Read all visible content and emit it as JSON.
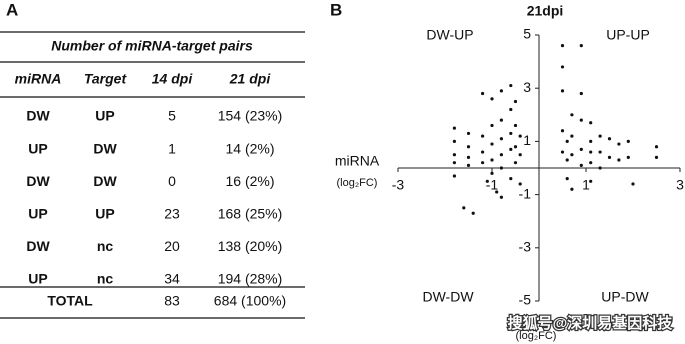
{
  "panel_a": {
    "label": "A",
    "table": {
      "title": "Number of miRNA-target pairs",
      "header": [
        "miRNA",
        "Target",
        "14 dpi",
        "21 dpi"
      ],
      "rows": [
        [
          "DW",
          "UP",
          "5",
          "154 (23%)"
        ],
        [
          "UP",
          "DW",
          "1",
          "14 (2%)"
        ],
        [
          "DW",
          "DW",
          "0",
          "16 (2%)"
        ],
        [
          "UP",
          "UP",
          "23",
          "168 (25%)"
        ],
        [
          "DW",
          "nc",
          "20",
          "138 (20%)"
        ],
        [
          "UP",
          "nc",
          "34",
          "194 (28%)"
        ]
      ],
      "total": [
        "TOTAL",
        "83",
        "684 (100%)"
      ]
    }
  },
  "chart_data": {
    "type": "scatter",
    "panel_label": "B",
    "title": "21dpi",
    "x_label": "miRNA",
    "x_label_unit": "(log₂FC)",
    "y_label_unit": "(log₂FC)",
    "quadrant_labels": {
      "top_left": "DW-UP",
      "top_right": "UP-UP",
      "bottom_left": "DW-DW",
      "bottom_right": "UP-DW"
    },
    "color": "#111111",
    "xlim": [
      -3,
      3
    ],
    "ylim": [
      -5,
      5
    ],
    "xticks": [
      -3,
      -1,
      1,
      3
    ],
    "yticks": [
      5,
      3,
      1,
      -1,
      -3,
      -5
    ],
    "x": [
      -1.8,
      -1.8,
      -1.8,
      -1.8,
      -1.8,
      -1.5,
      -1.5,
      -1.5,
      -1.5,
      -1.6,
      -1.4,
      -1.2,
      -1.2,
      -1.2,
      -1.2,
      -1.1,
      -1.0,
      -1.0,
      -1.0,
      -1.0,
      -1.0,
      -0.9,
      -0.8,
      -0.8,
      -0.8,
      -0.8,
      -0.8,
      -0.8,
      -0.6,
      -0.6,
      -0.6,
      -0.6,
      -0.6,
      -0.5,
      -0.5,
      -0.5,
      -0.5,
      -0.4,
      -0.4,
      -0.4,
      0.5,
      0.5,
      0.5,
      0.5,
      0.5,
      0.6,
      0.6,
      0.6,
      0.7,
      0.7,
      0.7,
      0.7,
      0.9,
      0.9,
      0.9,
      0.9,
      0.9,
      1.1,
      1.1,
      1.1,
      1.1,
      1.1,
      1.3,
      1.3,
      1.3,
      1.5,
      1.5,
      1.7,
      1.7,
      1.9,
      1.9,
      2.0,
      2.5,
      2.5
    ],
    "values": [
      1.5,
      1.0,
      0.5,
      0.2,
      -0.3,
      1.3,
      0.8,
      0.4,
      0.1,
      -1.5,
      -1.7,
      2.8,
      1.2,
      0.6,
      0.2,
      -0.5,
      2.6,
      1.6,
      0.9,
      0.3,
      -0.2,
      -0.9,
      2.9,
      1.8,
      1.1,
      0.5,
      0.0,
      -1.1,
      3.1,
      2.2,
      1.3,
      0.7,
      -0.4,
      2.5,
      1.6,
      0.8,
      0.2,
      1.2,
      0.5,
      -0.6,
      4.6,
      3.8,
      2.9,
      1.4,
      0.6,
      0.3,
      -0.4,
      1.0,
      2.0,
      1.2,
      0.5,
      -0.8,
      4.6,
      2.8,
      1.8,
      0.7,
      0.1,
      1.7,
      1.0,
      0.6,
      0.2,
      -0.5,
      1.2,
      0.6,
      0.0,
      1.1,
      0.4,
      0.9,
      0.3,
      1.0,
      0.4,
      -0.6,
      0.8,
      0.4
    ]
  },
  "watermark": "搜狐号@深圳易基因科技"
}
